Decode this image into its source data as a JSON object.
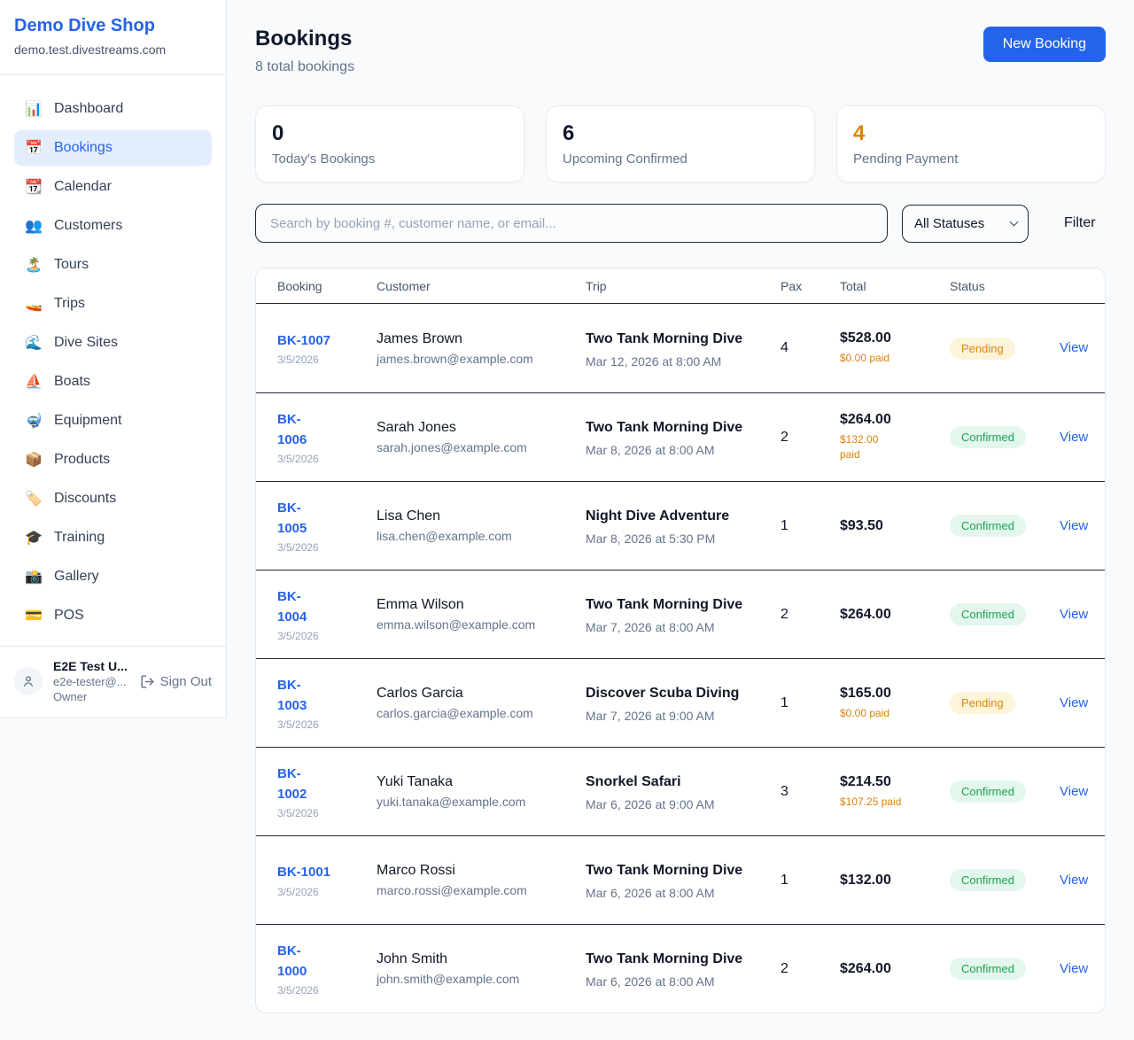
{
  "sidebar": {
    "brand": {
      "name": "Demo Dive Shop",
      "domain": "demo.test.divestreams.com"
    },
    "items": [
      {
        "icon": "📊",
        "icon_name": "bar-chart-icon",
        "label": "Dashboard",
        "active": false
      },
      {
        "icon": "📅",
        "icon_name": "calendar-17-icon",
        "label": "Bookings",
        "active": true
      },
      {
        "icon": "📆",
        "icon_name": "tear-off-calendar-icon",
        "label": "Calendar",
        "active": false
      },
      {
        "icon": "👥",
        "icon_name": "people-icon",
        "label": "Customers",
        "active": false
      },
      {
        "icon": "🏝️",
        "icon_name": "island-icon",
        "label": "Tours",
        "active": false
      },
      {
        "icon": "🚤",
        "icon_name": "speedboat-icon",
        "label": "Trips",
        "active": false
      },
      {
        "icon": "🌊",
        "icon_name": "wave-icon",
        "label": "Dive Sites",
        "active": false
      },
      {
        "icon": "⛵",
        "icon_name": "sailboat-icon",
        "label": "Boats",
        "active": false
      },
      {
        "icon": "🤿",
        "icon_name": "diving-mask-icon",
        "label": "Equipment",
        "active": false
      },
      {
        "icon": "📦",
        "icon_name": "package-icon",
        "label": "Products",
        "active": false
      },
      {
        "icon": "🏷️",
        "icon_name": "tag-icon",
        "label": "Discounts",
        "active": false
      },
      {
        "icon": "🎓",
        "icon_name": "graduation-cap-icon",
        "label": "Training",
        "active": false
      },
      {
        "icon": "📸",
        "icon_name": "camera-icon",
        "label": "Gallery",
        "active": false
      },
      {
        "icon": "💳",
        "icon_name": "credit-card-icon",
        "label": "POS",
        "active": false
      }
    ],
    "user": {
      "name": "E2E Test U...",
      "email": "e2e-tester@...",
      "role": "Owner",
      "sign_out_label": "Sign Out"
    }
  },
  "header": {
    "title": "Bookings",
    "subtitle": "8 total bookings",
    "new_booking_label": "New Booking"
  },
  "stats": [
    {
      "value": "0",
      "label": "Today's Bookings",
      "orange": false
    },
    {
      "value": "6",
      "label": "Upcoming Confirmed",
      "orange": false
    },
    {
      "value": "4",
      "label": "Pending Payment",
      "orange": true
    }
  ],
  "filters": {
    "search_placeholder": "Search by booking #, customer name, or email...",
    "status_selected": "All Statuses",
    "filter_label": "Filter"
  },
  "table": {
    "columns": [
      "Booking",
      "Customer",
      "Trip",
      "Pax",
      "Total",
      "Status"
    ],
    "view_label": "View",
    "rows": [
      {
        "id": "BK-1007",
        "id_wrapped": false,
        "date": "3/5/2026",
        "customer": "James Brown",
        "email": "james.brown@example.com",
        "trip": "Two Tank Morning Dive",
        "trip_datetime": "Mar 12, 2026 at 8:00 AM",
        "pax": "4",
        "total": "$528.00",
        "paid": "$0.00 paid",
        "paid_wrapped": false,
        "status": "Pending"
      },
      {
        "id": "BK-1006",
        "id_wrapped": true,
        "date": "3/5/2026",
        "customer": "Sarah Jones",
        "email": "sarah.jones@example.com",
        "trip": "Two Tank Morning Dive",
        "trip_datetime": "Mar 8, 2026 at 8:00 AM",
        "pax": "2",
        "total": "$264.00",
        "paid": "$132.00 paid",
        "paid_wrapped": true,
        "status": "Confirmed"
      },
      {
        "id": "BK-1005",
        "id_wrapped": true,
        "date": "3/5/2026",
        "customer": "Lisa Chen",
        "email": "lisa.chen@example.com",
        "trip": "Night Dive Adventure",
        "trip_datetime": "Mar 8, 2026 at 5:30 PM",
        "pax": "1",
        "total": "$93.50",
        "paid": null,
        "paid_wrapped": false,
        "status": "Confirmed"
      },
      {
        "id": "BK-1004",
        "id_wrapped": true,
        "date": "3/5/2026",
        "customer": "Emma Wilson",
        "email": "emma.wilson@example.com",
        "trip": "Two Tank Morning Dive",
        "trip_datetime": "Mar 7, 2026 at 8:00 AM",
        "pax": "2",
        "total": "$264.00",
        "paid": null,
        "paid_wrapped": false,
        "status": "Confirmed"
      },
      {
        "id": "BK-1003",
        "id_wrapped": true,
        "date": "3/5/2026",
        "customer": "Carlos Garcia",
        "email": "carlos.garcia@example.com",
        "trip": "Discover Scuba Diving",
        "trip_datetime": "Mar 7, 2026 at 9:00 AM",
        "pax": "1",
        "total": "$165.00",
        "paid": "$0.00 paid",
        "paid_wrapped": false,
        "status": "Pending"
      },
      {
        "id": "BK-1002",
        "id_wrapped": true,
        "date": "3/5/2026",
        "customer": "Yuki Tanaka",
        "email": "yuki.tanaka@example.com",
        "trip": "Snorkel Safari",
        "trip_datetime": "Mar 6, 2026 at 9:00 AM",
        "pax": "3",
        "total": "$214.50",
        "paid": "$107.25 paid",
        "paid_wrapped": false,
        "status": "Confirmed"
      },
      {
        "id": "BK-1001",
        "id_wrapped": false,
        "date": "3/5/2026",
        "customer": "Marco Rossi",
        "email": "marco.rossi@example.com",
        "trip": "Two Tank Morning Dive",
        "trip_datetime": "Mar 6, 2026 at 8:00 AM",
        "pax": "1",
        "total": "$132.00",
        "paid": null,
        "paid_wrapped": false,
        "status": "Confirmed"
      },
      {
        "id": "BK-1000",
        "id_wrapped": true,
        "date": "3/5/2026",
        "customer": "John Smith",
        "email": "john.smith@example.com",
        "trip": "Two Tank Morning Dive",
        "trip_datetime": "Mar 6, 2026 at 8:00 AM",
        "pax": "2",
        "total": "$264.00",
        "paid": null,
        "paid_wrapped": false,
        "status": "Confirmed"
      }
    ]
  },
  "colors": {
    "accent": "#2563eb",
    "pending_text": "#df870f",
    "pending_bg": "#fdf4da",
    "confirmed_text": "#18a355",
    "confirmed_bg": "#e4f7ec",
    "orange_stat": "#d9830d",
    "row_divider": "#1e293b"
  }
}
